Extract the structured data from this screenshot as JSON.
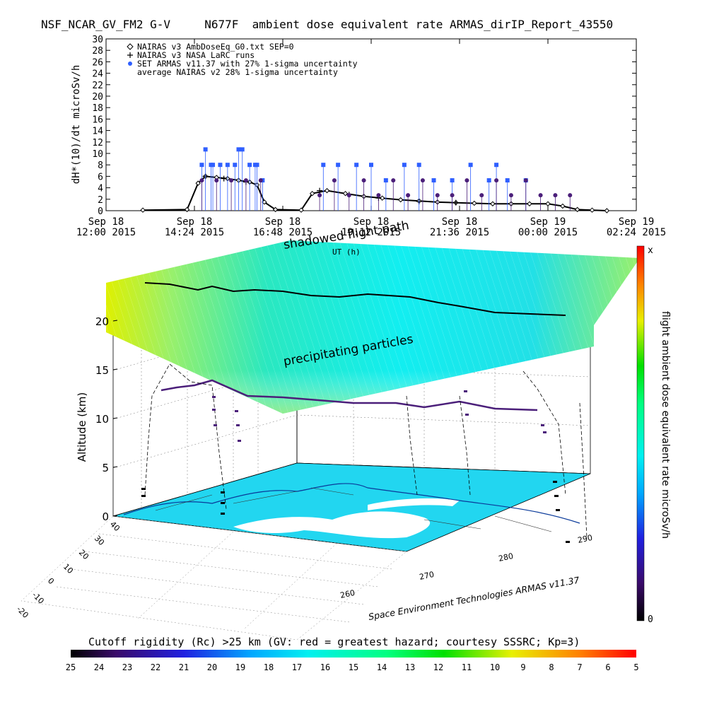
{
  "header": {
    "title": "NSF_NCAR_GV_FM2 G-V     N677F  ambient dose equivalent rate ARMAS_dirIP_Report_43550"
  },
  "top_chart": {
    "ylabel": "dH*(10)/dt microSv/h",
    "legend": [
      "NAIRAS v3 AmbDoseEq_G0.txt SEP=0",
      "NAIRAS v3 NASA LaRC runs",
      "SET ARMAS v11.37 with 27% 1-sigma uncertainty",
      "average NAIRAS v2 28% 1-sigma uncertainty"
    ],
    "xticks": [
      {
        "line1": "Sep 18",
        "line2": "12:00 2015"
      },
      {
        "line1": "Sep 18",
        "line2": "14:24 2015"
      },
      {
        "line1": "Sep 18",
        "line2": "16:48 2015"
      },
      {
        "line1": "Sep 18",
        "line2": "19:12 2015"
      },
      {
        "line1": "Sep 18",
        "line2": "21:36 2015"
      },
      {
        "line1": "Sep 19",
        "line2": "00:00 2015"
      },
      {
        "line1": "Sep 19",
        "line2": "02:24 2015"
      }
    ],
    "yticks": [
      "0",
      "2",
      "4",
      "6",
      "8",
      "10",
      "12",
      "14",
      "16",
      "18",
      "20",
      "22",
      "24",
      "26",
      "28",
      "30"
    ],
    "secondary_label": "UT (h)"
  },
  "globe": {
    "shadow_label": "shadowed flight path",
    "precip_label": "precipitating particles",
    "zlabel": "Altitude (km)",
    "zticks": [
      "0",
      "5",
      "10",
      "15",
      "20"
    ],
    "lat_ticks": [
      "40",
      "30",
      "20",
      "10",
      "0",
      "-10",
      "-20"
    ],
    "lon_ticks": [
      "260",
      "270",
      "280",
      "290"
    ],
    "credit": "Space Environment Technologies ARMAS v11.37"
  },
  "right_colorbar": {
    "label": "flight ambient dose equivalent rate microSv/h",
    "top": "x",
    "bottom": "0"
  },
  "bottom_colorbar": {
    "title": "Cutoff rigidity (Rc) >25 km (GV: red = greatest hazard; courtesy SSSRC; Kp=3)",
    "ticks": [
      "25",
      "24",
      "23",
      "22",
      "21",
      "20",
      "19",
      "18",
      "17",
      "16",
      "15",
      "14",
      "13",
      "12",
      "11",
      "10",
      "9",
      "8",
      "7",
      "6",
      "5"
    ]
  },
  "colors": {
    "armas_blue": "#2f5fff",
    "armas_purple": "#4b1f7a",
    "map_cyan": "#22d6f0",
    "nairas_black": "#000000"
  },
  "chart_data": {
    "type": "scatter",
    "title": "NSF_NCAR_GV_FM2 G-V     N677F  ambient dose equivalent rate ARMAS_dirIP_Report_43550",
    "ylabel": "dH*(10)/dt microSv/h",
    "xlabel": "",
    "ylim": [
      0,
      30
    ],
    "xlim_hours": [
      12.0,
      26.4
    ],
    "x_unit": "hours UT since Sep 18 00:00 2015",
    "series": [
      {
        "name": "NAIRAS v3 AmbDoseEq_G0.txt SEP=0",
        "x": [
          13.0,
          14.2,
          14.5,
          14.7,
          15.0,
          15.3,
          15.6,
          15.9,
          16.1,
          16.3,
          16.6,
          17.3,
          17.6,
          18.0,
          18.5,
          19.0,
          19.5,
          20.0,
          20.5,
          21.0,
          21.5,
          22.0,
          22.5,
          23.0,
          23.5,
          24.0,
          24.4,
          24.8,
          25.2,
          25.6
        ],
        "values": [
          0.1,
          0.2,
          4.8,
          6.0,
          5.8,
          5.6,
          5.3,
          5.0,
          4.5,
          1.5,
          0.2,
          0.1,
          3.0,
          3.5,
          3.0,
          2.5,
          2.2,
          1.9,
          1.7,
          1.5,
          1.4,
          1.3,
          1.2,
          1.2,
          1.2,
          1.2,
          0.8,
          0.2,
          0.1,
          0.0
        ]
      },
      {
        "name": "NAIRAS v3 NASA LaRC runs",
        "x": [
          14.7,
          15.2,
          15.8,
          17.8,
          18.6,
          19.4,
          20.5,
          21.5
        ],
        "values": [
          6.0,
          5.6,
          5.0,
          3.5,
          2.8,
          2.2,
          1.6,
          1.4
        ]
      },
      {
        "name": "SET ARMAS v11.37 with 27% 1-sigma uncertainty",
        "x": [
          14.6,
          14.7,
          14.85,
          14.9,
          15.1,
          15.3,
          15.5,
          15.6,
          15.7,
          15.9,
          16.05,
          16.1,
          16.25,
          17.9,
          18.3,
          18.8,
          19.2,
          19.6,
          20.1,
          20.5,
          20.9,
          21.4,
          21.9,
          22.4,
          22.6,
          22.9,
          23.4
        ],
        "values": [
          8,
          10.7,
          8,
          8,
          8,
          8,
          8,
          10.7,
          10.7,
          8,
          8,
          8,
          5.3,
          8,
          8,
          8,
          8,
          5.3,
          8,
          8,
          5.3,
          5.3,
          8,
          5.3,
          8,
          5.3,
          5.3
        ]
      },
      {
        "name": "average NAIRAS v2 28% 1-sigma uncertainty",
        "x": [
          14.6,
          15.0,
          15.4,
          15.8,
          16.2,
          17.8,
          18.2,
          18.6,
          19.0,
          19.4,
          19.8,
          20.2,
          20.6,
          21.0,
          21.4,
          21.8,
          22.2,
          22.6,
          23.0,
          23.4,
          23.8,
          24.2,
          24.6
        ],
        "values": [
          5.3,
          5.3,
          5.3,
          5.3,
          5.3,
          2.7,
          5.3,
          2.7,
          5.3,
          2.7,
          5.3,
          2.7,
          5.3,
          2.7,
          2.7,
          5.3,
          2.7,
          5.3,
          2.7,
          5.3,
          2.7,
          2.7,
          2.7
        ]
      }
    ]
  }
}
